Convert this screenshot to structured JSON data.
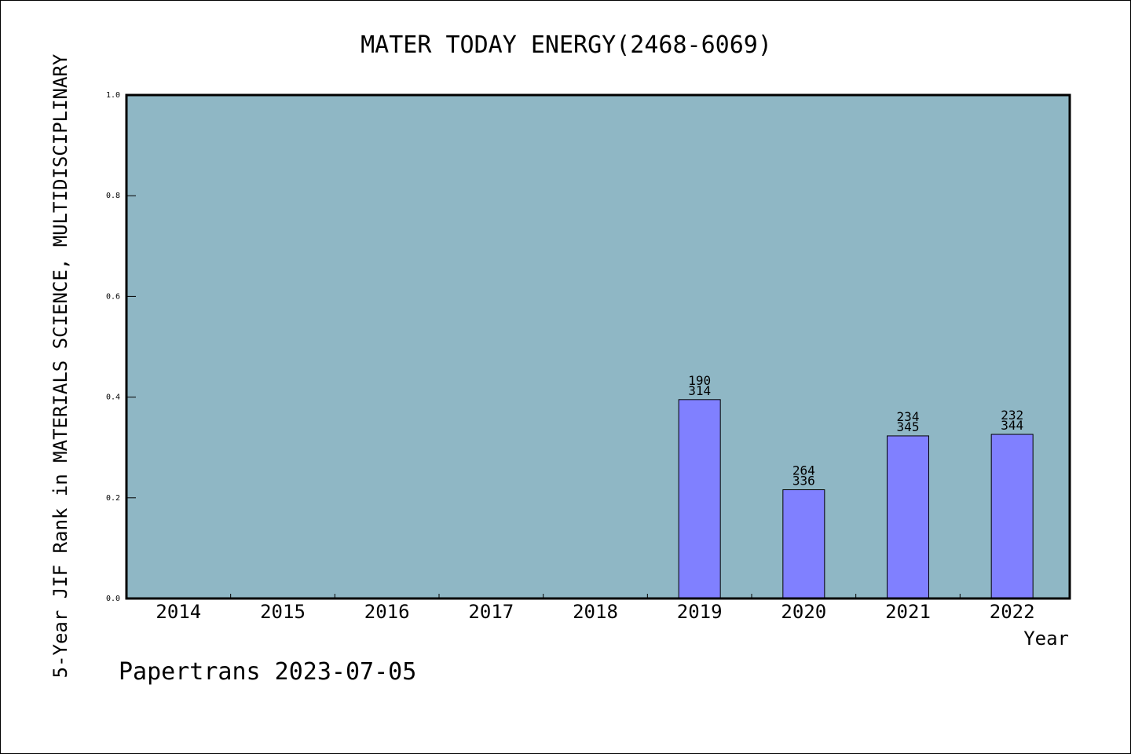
{
  "chart_data": {
    "type": "bar",
    "title": "MATER TODAY ENERGY(2468-6069)",
    "ylabel": "5-Year JIF Rank in MATERIALS SCIENCE, MULTIDISCIPLINARY",
    "xlabel": "Year",
    "categories": [
      "2014",
      "2015",
      "2016",
      "2017",
      "2018",
      "2019",
      "2020",
      "2021",
      "2022"
    ],
    "values": [
      null,
      null,
      null,
      null,
      null,
      0.395,
      0.216,
      0.323,
      0.326
    ],
    "labels_top": [
      "",
      "",
      "",
      "",
      "",
      "190",
      "264",
      "234",
      "232"
    ],
    "labels_bottom": [
      "",
      "",
      "",
      "",
      "",
      "314",
      "336",
      "345",
      "344"
    ],
    "ylim": [
      0,
      1.0
    ],
    "yticks": [
      "0.0",
      "0.2",
      "0.4",
      "0.6",
      "0.8",
      "1.0"
    ],
    "grid": false,
    "colors": {
      "plot_bg": "#8fb7c5",
      "bar": "#8080ff"
    }
  },
  "footer": "Papertrans 2023-07-05"
}
